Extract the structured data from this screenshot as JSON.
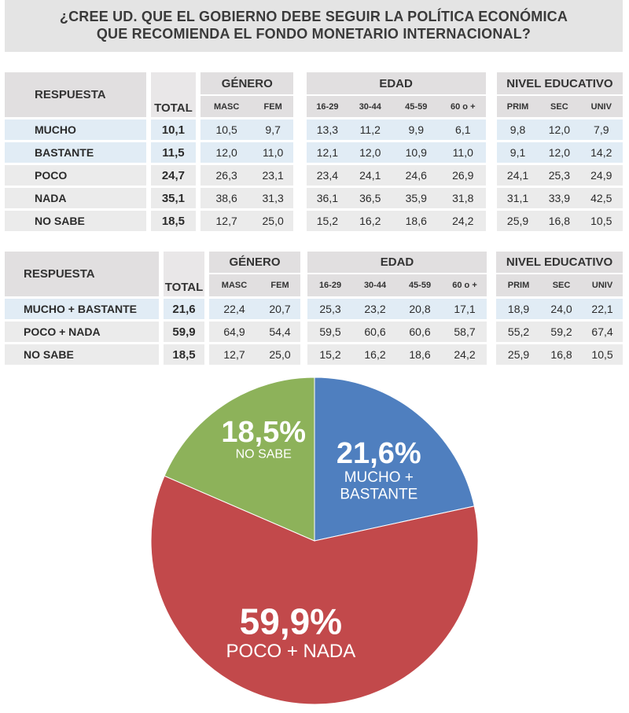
{
  "title": {
    "line1": "¿CREE UD. QUE EL GOBIERNO DEBE SEGUIR LA POLÍTICA ECONÓMICA",
    "line2": "QUE RECOMIENDA EL FONDO MONETARIO INTERNACIONAL?"
  },
  "headers": {
    "respuesta": "RESPUESTA",
    "total": "TOTAL",
    "genero": "GÉNERO",
    "edad": "EDAD",
    "nivel": "NIVEL EDUCATIVO",
    "masc": "MASC",
    "fem": "FEM",
    "e1": "16-29",
    "e2": "30-44",
    "e3": "45-59",
    "e4": "60 o +",
    "prim": "PRIM",
    "sec": "SEC",
    "univ": "UNIV"
  },
  "table1": {
    "rows": [
      {
        "label": "MUCHO",
        "total": "10,1",
        "values": [
          "10,5",
          "9,7",
          "13,3",
          "11,2",
          "9,9",
          "6,1",
          "9,8",
          "12,0",
          "7,9"
        ]
      },
      {
        "label": "BASTANTE",
        "total": "11,5",
        "values": [
          "12,0",
          "11,0",
          "12,1",
          "12,0",
          "10,9",
          "11,0",
          "9,1",
          "12,0",
          "14,2"
        ]
      },
      {
        "label": "POCO",
        "total": "24,7",
        "values": [
          "26,3",
          "23,1",
          "23,4",
          "24,1",
          "24,6",
          "26,9",
          "24,1",
          "25,3",
          "24,9"
        ]
      },
      {
        "label": "NADA",
        "total": "35,1",
        "values": [
          "38,6",
          "31,3",
          "36,1",
          "36,5",
          "35,9",
          "31,8",
          "31,1",
          "33,9",
          "42,5"
        ]
      },
      {
        "label": "NO SABE",
        "total": "18,5",
        "values": [
          "12,7",
          "25,0",
          "15,2",
          "16,2",
          "18,6",
          "24,2",
          "25,9",
          "16,8",
          "10,5"
        ]
      }
    ]
  },
  "table2": {
    "rows": [
      {
        "label": "MUCHO + BASTANTE",
        "total": "21,6",
        "values": [
          "22,4",
          "20,7",
          "25,3",
          "23,2",
          "20,8",
          "17,1",
          "18,9",
          "24,0",
          "22,1"
        ]
      },
      {
        "label": "POCO + NADA",
        "total": "59,9",
        "values": [
          "64,9",
          "54,4",
          "59,5",
          "60,6",
          "60,6",
          "58,7",
          "55,2",
          "59,2",
          "67,4"
        ]
      },
      {
        "label": "NO SABE",
        "total": "18,5",
        "values": [
          "12,7",
          "25,0",
          "15,2",
          "16,2",
          "18,6",
          "24,2",
          "25,9",
          "16,8",
          "10,5"
        ]
      }
    ]
  },
  "chart_data": {
    "type": "pie",
    "title": "",
    "slices": [
      {
        "name": "MUCHO + BASTANTE",
        "value": 21.6,
        "pct_label": "21,6%",
        "label_lines": [
          "MUCHO +",
          "BASTANTE"
        ],
        "color": "#4f7fbf"
      },
      {
        "name": "POCO + NADA",
        "value": 59.9,
        "pct_label": "59,9%",
        "label_lines": [
          "POCO + NADA"
        ],
        "color": "#c2494b"
      },
      {
        "name": "NO SABE",
        "value": 18.5,
        "pct_label": "18,5%",
        "label_lines": [
          "NO SABE"
        ],
        "color": "#8db25a"
      }
    ]
  }
}
